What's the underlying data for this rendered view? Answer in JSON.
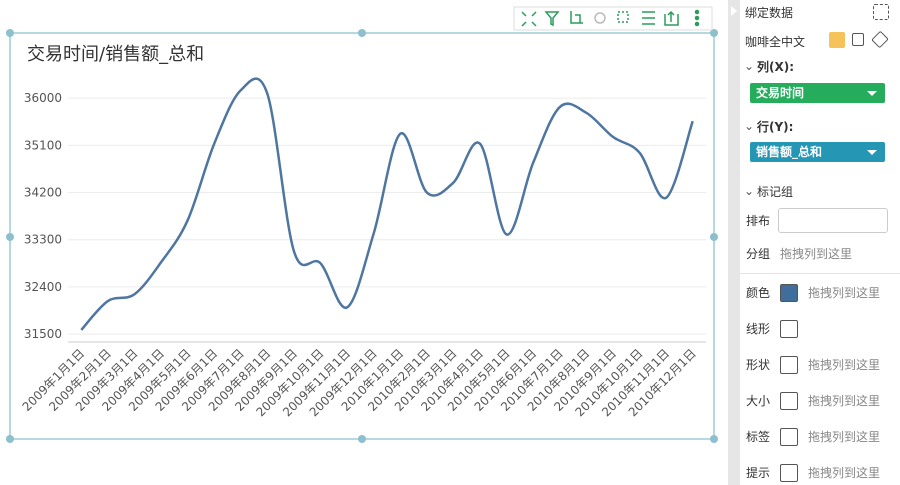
{
  "chart_data": {
    "type": "line",
    "title": "交易时间/销售额_总和",
    "categories": [
      "2009年1月1日",
      "2009年2月1日",
      "2009年3月1日",
      "2009年4月1日",
      "2009年5月1日",
      "2009年6月1日",
      "2009年7月1日",
      "2009年8月1日",
      "2009年9月1日",
      "2009年10月1日",
      "2009年11月1日",
      "2009年12月1日",
      "2010年1月1日",
      "2010年2月1日",
      "2010年3月1日",
      "2010年4月1日",
      "2010年5月1日",
      "2010年6月1日",
      "2010年7月1日",
      "2010年8月1日",
      "2010年9月1日",
      "2010年10月1日",
      "2010年11月1日",
      "2010年12月1日"
    ],
    "series": [
      {
        "name": "销售额_总和",
        "color": "#4e76a0",
        "values": [
          31580,
          32130,
          32260,
          32870,
          33670,
          35130,
          36150,
          36080,
          33080,
          32850,
          32010,
          33420,
          35320,
          34200,
          34390,
          35130,
          33400,
          34770,
          35830,
          35720,
          35260,
          34960,
          34100,
          35560
        ]
      }
    ],
    "ylim": [
      31350,
      36250
    ],
    "yticks": [
      31500,
      32400,
      33300,
      34200,
      35100,
      36000
    ],
    "grid": true,
    "smooth": true
  },
  "panel": {
    "title": "绑定数据",
    "dataset": "咖啡全中文",
    "x_label": "列(X):",
    "x_field": "交易时间",
    "y_label": "行(Y):",
    "y_field": "销售额_总和",
    "marks_label": "标记组",
    "layout_label": "排布",
    "group_label": "分组",
    "group_hint": "拖拽列到这里",
    "rows": [
      {
        "label": "颜色",
        "hint": "拖拽列到这里"
      },
      {
        "label": "线形"
      },
      {
        "label": "形状",
        "hint": "拖拽列到这里"
      },
      {
        "label": "大小",
        "hint": "拖拽列到这里"
      },
      {
        "label": "标签",
        "hint": "拖拽列到这里"
      },
      {
        "label": "提示",
        "hint": "拖拽列到这里"
      }
    ]
  }
}
